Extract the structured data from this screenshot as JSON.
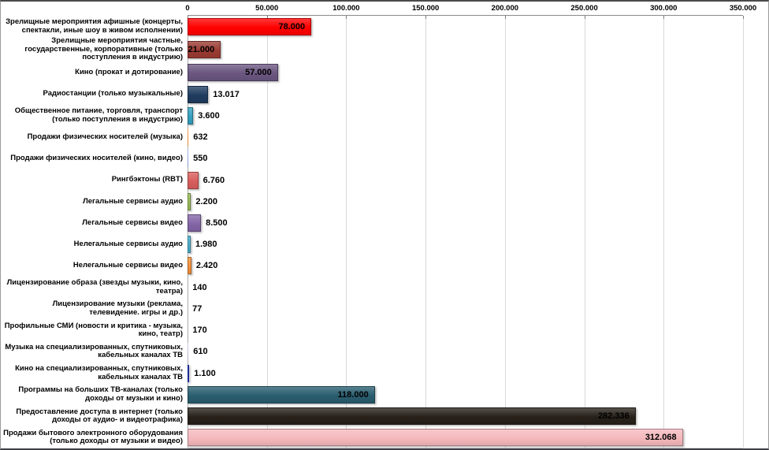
{
  "chart_data": {
    "type": "bar",
    "orientation": "horizontal",
    "title": "",
    "xlabel": "",
    "ylabel": "",
    "legend": false,
    "grid": true,
    "x_axis": {
      "position": "top",
      "min": 0,
      "max": 350000,
      "tick_interval": 50000,
      "tick_labels": [
        "0",
        "50.000",
        "100.000",
        "150.000",
        "200.000",
        "250.000",
        "300.000",
        "350.000"
      ]
    },
    "categories": [
      "Зрелищные мероприятия афишные (концерты, спектакли, иные шоу в живом исполнении)",
      "Зрелищные мероприятия частные, государственные, корпоративные (только поступления в индустрию)",
      "Кино (прокат и дотирование)",
      "Радиостанции (только музыкальные)",
      "Общественное питание, торговля, транспорт (только поступления в индустрию)",
      "Продажи физических носителей (музыка)",
      "Продажи физических носителей (кино, видео)",
      "Рингбэктоны (RBT)",
      "Легальные сервисы аудио",
      "Легальные сервисы видео",
      "Нелегальные сервисы аудио",
      "Нелегальные сервисы видео",
      "Лицензирование образа (звезды музыки, кино, театра)",
      "Лицензирование музыки (реклама, телевидение. игры и др.)",
      "Профильные СМИ (новости и критика - музыка, кино, театр)",
      "Музыка на специализированных, спутниковых, кабельных каналах ТВ",
      "Кино на специализированных, спутниковых, кабельных каналах ТВ",
      "Программы на больших ТВ-каналах (только доходы от музыки и кино)",
      "Предоставление доступа в интернет (только доходы от аудио- и видеотрафика)",
      "Продажи бытового электронного оборудования (только доходы от музыки и видео)"
    ],
    "values": [
      78000,
      21000,
      57000,
      13017,
      3600,
      632,
      550,
      6760,
      2200,
      8500,
      1980,
      2420,
      140,
      77,
      170,
      610,
      1100,
      118000,
      282336,
      312068
    ],
    "value_labels": [
      "78.000",
      "21.000",
      "57.000",
      "13.017",
      "3.600",
      "632",
      "550",
      "6.760",
      "2.200",
      "8.500",
      "1.980",
      "2.420",
      "140",
      "77",
      "170",
      "610",
      "1.100",
      "118.000",
      "282.336",
      "312.068"
    ],
    "bar_colors": [
      "#FF0000",
      "#9A3B33",
      "#6A5680",
      "#1F3C5F",
      "#35A0BD",
      "#ED8E35",
      "#8CA6DB",
      "#D85E5C",
      "#9CC159",
      "#8465A6",
      "#4DB3D3",
      "#F6923D",
      "#D99694",
      "#B9CDE5",
      "#CCC0DA",
      "#C6BCDC",
      "#2C3FE0",
      "#295D6F",
      "#27211A",
      "#F5B9BD"
    ],
    "gridline_color": "#D9D9D9",
    "zero_line_color": "#ABABAB",
    "label_inside_threshold": 20000
  }
}
